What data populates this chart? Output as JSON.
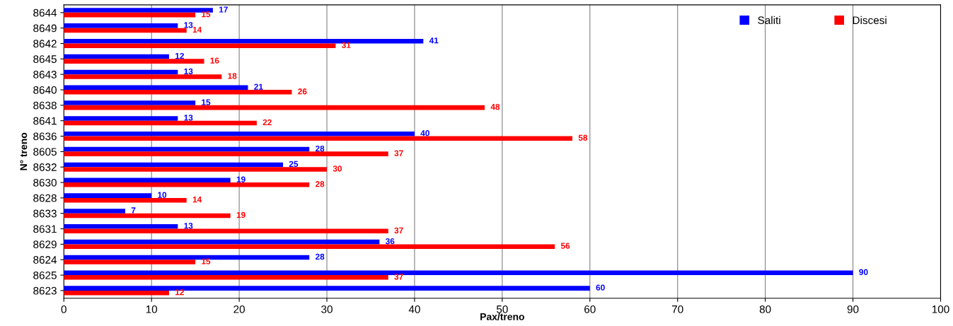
{
  "chart_data": {
    "type": "bar",
    "orientation": "horizontal",
    "xlabel": "Pax/treno",
    "ylabel": "N° treno",
    "categories": [
      "8644",
      "8649",
      "8642",
      "8645",
      "8643",
      "8640",
      "8638",
      "8641",
      "8636",
      "8605",
      "8632",
      "8630",
      "8628",
      "8633",
      "8631",
      "8629",
      "8624",
      "8625",
      "8623"
    ],
    "series": [
      {
        "name": "Saliti",
        "color": "#0000ff",
        "values": [
          17,
          13,
          41,
          12,
          13,
          21,
          15,
          13,
          40,
          28,
          25,
          19,
          10,
          7,
          13,
          36,
          28,
          90,
          60
        ]
      },
      {
        "name": "Discesi",
        "color": "#ff0000",
        "values": [
          15,
          14,
          31,
          16,
          18,
          26,
          48,
          22,
          58,
          37,
          30,
          28,
          14,
          19,
          37,
          56,
          15,
          37,
          12
        ]
      }
    ],
    "xlim": [
      0,
      100
    ],
    "xticks": [
      0,
      10,
      20,
      30,
      40,
      50,
      60,
      70,
      80,
      90,
      100
    ],
    "grid": "x",
    "legend": "top right",
    "data_labels": true
  }
}
